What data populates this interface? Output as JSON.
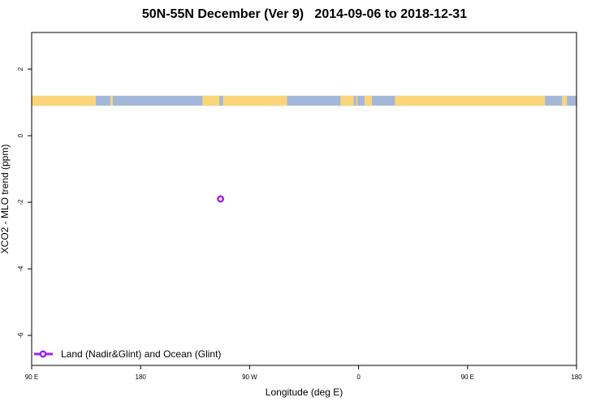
{
  "chart_data": {
    "type": "scatter",
    "title": "50N-55N December (Ver 9)   2014-09-06 to 2018-12-31",
    "xlabel": "Longitude (deg E)",
    "ylabel": "XCO2 - MLO trend (ppm)",
    "x_ticks": [
      {
        "value": 90,
        "label": "90 E"
      },
      {
        "value": 180,
        "label": "180"
      },
      {
        "value": 270,
        "label": "90 W"
      },
      {
        "value": 360,
        "label": "0"
      },
      {
        "value": 450,
        "label": "90 E"
      },
      {
        "value": 540,
        "label": "180"
      }
    ],
    "y_ticks": [
      {
        "value": 2,
        "label": "2"
      },
      {
        "value": 0,
        "label": "0"
      },
      {
        "value": -2,
        "label": "-2"
      },
      {
        "value": -4,
        "label": "-4"
      },
      {
        "value": -6,
        "label": "-6"
      }
    ],
    "xlim": [
      90,
      540
    ],
    "ylim": [
      -6.9,
      3.1
    ],
    "land_sea_strip": {
      "y_range": [
        0.9,
        1.2
      ],
      "ocean_color": "#a3b8d8",
      "land_color": "#fbd57a",
      "land_segments": [
        [
          90,
          143
        ],
        [
          155,
          157
        ],
        [
          231,
          245
        ],
        [
          248,
          301
        ],
        [
          345,
          356
        ],
        [
          358,
          358
        ],
        [
          365,
          371
        ],
        [
          390,
          514
        ],
        [
          528,
          532
        ]
      ]
    },
    "series": [
      {
        "name": "Land (Nadir&Glint) and Ocean (Glint)",
        "color": "#a020f0",
        "marker": "open-circle",
        "points": [
          {
            "x": 246,
            "y": -1.9
          }
        ]
      }
    ],
    "legend_position": "bottom-left"
  }
}
